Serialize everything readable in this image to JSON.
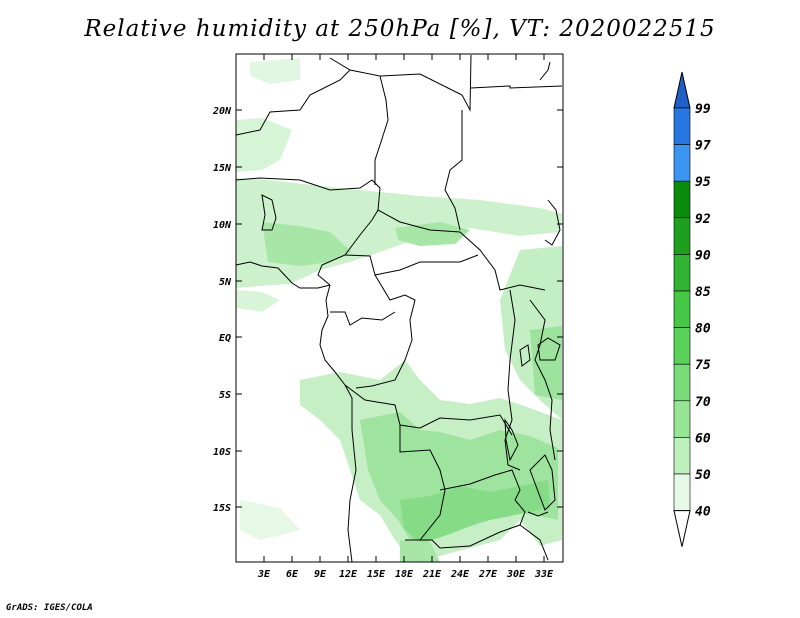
{
  "title": "Relative humidity at 250hPa [%], VT: 2020022515",
  "credit": "GrADS: IGES/COLA",
  "map": {
    "lat_labels": [
      "20N",
      "15N",
      "10N",
      "5N",
      "EQ",
      "5S",
      "10S",
      "15S"
    ],
    "lon_labels": [
      "3E",
      "6E",
      "9E",
      "12E",
      "15E",
      "18E",
      "21E",
      "24E",
      "27E",
      "30E",
      "33E"
    ]
  },
  "colorbar": {
    "labels": [
      "99",
      "97",
      "95",
      "92",
      "90",
      "85",
      "80",
      "75",
      "70",
      "60",
      "50",
      "40"
    ],
    "colors": [
      "#1e5fc8",
      "#2877e0",
      "#3c95f0",
      "#0a8c0a",
      "#1ea01e",
      "#32b432",
      "#46c846",
      "#5ad25a",
      "#78dc78",
      "#96e696",
      "#bef0be",
      "#e6f8e6"
    ],
    "top_color": "#1e5fc8",
    "bottom_color": "#ffffff"
  }
}
